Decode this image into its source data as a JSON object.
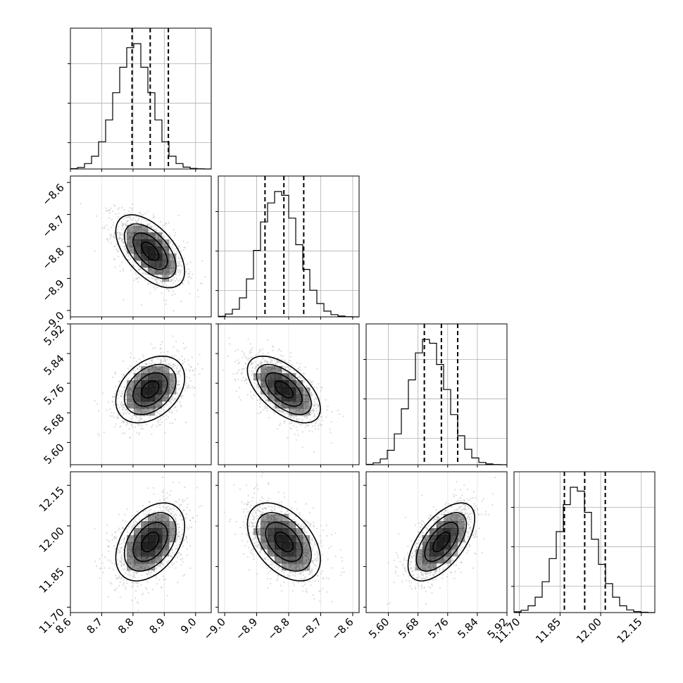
{
  "chart_data": {
    "type": "corner",
    "parameters": 4,
    "ranges": [
      [
        8.6,
        9.05
      ],
      [
        -9.02,
        -8.58
      ],
      [
        5.54,
        5.92
      ],
      [
        11.68,
        12.2
      ]
    ],
    "ticks": [
      {
        "values": [
          8.6,
          8.7,
          8.8,
          8.9,
          9.0
        ],
        "labels": [
          "8.6",
          "8.7",
          "8.8",
          "8.9",
          "9.0"
        ]
      },
      {
        "values": [
          -9.0,
          -8.9,
          -8.8,
          -8.7,
          -8.6
        ],
        "labels": [
          "−9.0",
          "−8.9",
          "−8.8",
          "−8.7",
          "−8.6"
        ]
      },
      {
        "values": [
          5.6,
          5.68,
          5.76,
          5.84,
          5.92
        ],
        "labels": [
          "5.60",
          "5.68",
          "5.76",
          "5.84",
          "5.92"
        ]
      },
      {
        "values": [
          11.7,
          11.85,
          12.0,
          12.15
        ],
        "labels": [
          "11.70",
          "11.85",
          "12.00",
          "12.15"
        ]
      }
    ],
    "marginals": [
      {
        "bin_edges": [
          8.6,
          8.6225,
          8.645,
          8.6675,
          8.69,
          8.7125,
          8.735,
          8.7575,
          8.78,
          8.8025,
          8.825,
          8.8475,
          8.87,
          8.8925,
          8.915,
          8.9375,
          8.96,
          8.9825,
          9.005,
          9.0275,
          9.05
        ],
        "counts": [
          2,
          8,
          30,
          70,
          150,
          270,
          420,
          560,
          668,
          690,
          560,
          420,
          270,
          150,
          70,
          30,
          10,
          3,
          1,
          0
        ],
        "quantiles": [
          8.797,
          8.855,
          8.913
        ]
      },
      {
        "bin_edges": [
          -9.02,
          -8.998,
          -8.976,
          -8.954,
          -8.932,
          -8.91,
          -8.888,
          -8.866,
          -8.844,
          -8.822,
          -8.8,
          -8.778,
          -8.756,
          -8.734,
          -8.712,
          -8.69,
          -8.668,
          -8.646,
          -8.624,
          -8.602,
          -8.58
        ],
        "counts": [
          3,
          15,
          40,
          100,
          200,
          350,
          500,
          600,
          660,
          640,
          520,
          380,
          250,
          140,
          70,
          30,
          12,
          4,
          1,
          0
        ],
        "quantiles": [
          -8.874,
          -8.815,
          -8.753
        ]
      },
      {
        "bin_edges": [
          5.54,
          5.559,
          5.578,
          5.597,
          5.616,
          5.635,
          5.654,
          5.673,
          5.692,
          5.711,
          5.73,
          5.749,
          5.768,
          5.787,
          5.806,
          5.825,
          5.844,
          5.863,
          5.882,
          5.901,
          5.92
        ],
        "counts": [
          2,
          10,
          30,
          75,
          160,
          290,
          440,
          580,
          650,
          630,
          520,
          390,
          260,
          150,
          80,
          35,
          12,
          4,
          1,
          0
        ],
        "quantiles": [
          5.697,
          5.743,
          5.787
        ]
      },
      {
        "bin_edges": [
          11.68,
          11.706,
          11.732,
          11.758,
          11.784,
          11.81,
          11.836,
          11.862,
          11.888,
          11.914,
          11.94,
          11.966,
          11.992,
          12.018,
          12.044,
          12.07,
          12.096,
          12.122,
          12.148,
          12.174,
          12.2
        ],
        "counts": [
          4,
          12,
          35,
          80,
          160,
          280,
          420,
          560,
          650,
          630,
          520,
          380,
          250,
          150,
          80,
          35,
          14,
          5,
          2,
          0
        ],
        "quantiles": [
          11.866,
          11.941,
          12.017
        ]
      }
    ],
    "joint": [
      {
        "x": 0,
        "y": 1,
        "mean": [
          8.855,
          -8.815
        ],
        "sd": [
          0.055,
          0.057
        ],
        "rho": -0.55
      },
      {
        "x": 0,
        "y": 2,
        "mean": [
          8.855,
          5.743
        ],
        "sd": [
          0.055,
          0.045
        ],
        "rho": 0.35
      },
      {
        "x": 1,
        "y": 2,
        "mean": [
          -8.815,
          5.743
        ],
        "sd": [
          0.057,
          0.045
        ],
        "rho": -0.58
      },
      {
        "x": 0,
        "y": 3,
        "mean": [
          8.855,
          11.941
        ],
        "sd": [
          0.055,
          0.072
        ],
        "rho": 0.4
      },
      {
        "x": 1,
        "y": 3,
        "mean": [
          -8.815,
          11.941
        ],
        "sd": [
          0.057,
          0.072
        ],
        "rho": -0.45
      },
      {
        "x": 2,
        "y": 3,
        "mean": [
          5.743,
          11.941
        ],
        "sd": [
          0.045,
          0.072
        ],
        "rho": 0.6
      }
    ],
    "contour_levels_sigma": [
      0.5,
      1.0,
      1.5,
      2.0
    ],
    "grid": true,
    "colors": {
      "hist": "#000000",
      "points": "#bdbdbd",
      "contour_fill": "#000000",
      "grid": "#b0b0b0"
    }
  }
}
